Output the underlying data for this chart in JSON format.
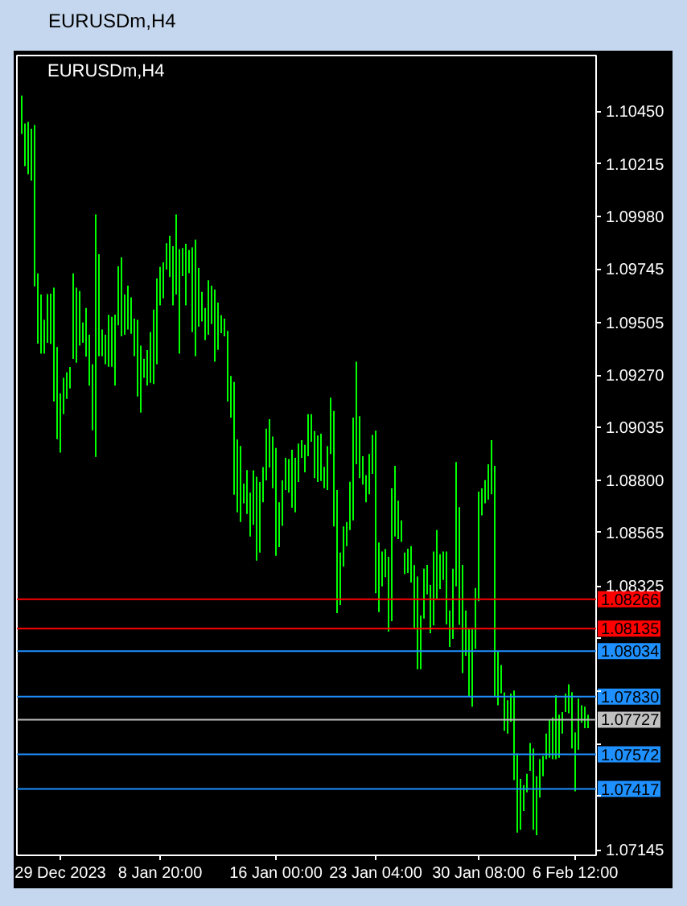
{
  "chart_data": {
    "type": "bar",
    "title": "EURUSDm,H4",
    "annotations": [
      "EURUSDm,H4"
    ],
    "categories": [
      null,
      null,
      null,
      null,
      null,
      null,
      null,
      null,
      null,
      null,
      null,
      null,
      "29 Dec 2023",
      null,
      null,
      null,
      null,
      null,
      null,
      null,
      null,
      null,
      null,
      null,
      null,
      null,
      null,
      null,
      null,
      null,
      null,
      null,
      null,
      null,
      null,
      null,
      null,
      null,
      null,
      null,
      null,
      null,
      null,
      "8 Jan 20:00",
      null,
      null,
      null,
      null,
      null,
      null,
      null,
      null,
      null,
      null,
      null,
      null,
      null,
      null,
      null,
      null,
      null,
      null,
      null,
      null,
      null,
      null,
      null,
      null,
      null,
      null,
      null,
      null,
      null,
      null,
      null,
      null,
      null,
      null,
      null,
      "16 Jan 00:00",
      null,
      null,
      null,
      null,
      null,
      null,
      null,
      null,
      null,
      null,
      null,
      null,
      null,
      null,
      null,
      null,
      null,
      null,
      null,
      null,
      null,
      null,
      null,
      null,
      null,
      null,
      null,
      null,
      null,
      null,
      "23 Jan 04:00",
      null,
      null,
      null,
      null,
      null,
      null,
      null,
      null,
      null,
      null,
      null,
      null,
      null,
      null,
      null,
      null,
      null,
      null,
      null,
      null,
      null,
      null,
      null,
      null,
      null,
      null,
      null,
      null,
      null,
      null,
      null,
      "30 Jan 08:00",
      null,
      null,
      null,
      null,
      null,
      null,
      null,
      null,
      null,
      null,
      null,
      null,
      null,
      null,
      null,
      null,
      null,
      null,
      null,
      null,
      null,
      null,
      null,
      null,
      null,
      null,
      null,
      null,
      null,
      "6 Feb 12:00",
      null,
      null,
      null,
      null
    ],
    "base": [
      1.10349,
      1.10205,
      1.10169,
      1.1014,
      1.09666,
      1.09411,
      1.09366,
      1.09366,
      1.09414,
      1.09409,
      1.09151,
      1.08983,
      1.08923,
      1.09095,
      1.09163,
      1.0921,
      1.09342,
      1.09325,
      1.09402,
      1.09414,
      1.09352,
      1.09222,
      1.09023,
      1.08904,
      1.09354,
      1.09354,
      1.09318,
      1.09307,
      1.09307,
      1.09222,
      1.09493,
      1.09443,
      1.0945,
      1.09474,
      1.09455,
      1.09354,
      1.09174,
      1.09102,
      1.09258,
      1.09222,
      1.09235,
      1.0923,
      1.09318,
      1.09582,
      1.09613,
      1.09742,
      1.09709,
      1.09582,
      1.0963,
      1.09366,
      1.09713,
      1.09582,
      1.09726,
      1.09462,
      1.09354,
      1.09486,
      1.0951,
      1.09426,
      1.0945,
      1.09498,
      1.0933,
      1.09383,
      1.09457,
      1.09443,
      1.09151,
      1.09079,
      1.08734,
      1.08655,
      1.08612,
      1.08696,
      1.08648,
      1.08547,
      1.08599,
      1.08439,
      1.08475,
      1.087,
      1.08798,
      1.08856,
      1.08763,
      1.08461,
      1.08499,
      1.08595,
      1.08755,
      1.08743,
      1.08676,
      1.08655,
      1.08791,
      1.08899,
      1.08834,
      1.08906,
      1.08971,
      1.08808,
      1.08791,
      1.08796,
      1.08763,
      1.08755,
      1.08916,
      1.08592,
      1.08204,
      1.0824,
      1.08412,
      1.08504,
      1.08576,
      1.08619,
      1.0887,
      1.08808,
      1.08779,
      1.087,
      1.08736,
      1.08827,
      1.08293,
      1.08209,
      1.08324,
      1.08365,
      1.08121,
      1.08168,
      1.08547,
      1.08535,
      1.08523,
      1.08379,
      1.08384,
      1.08341,
      1.08132,
      1.07953,
      1.07953,
      1.0818,
      1.08288,
      1.08114,
      1.08149,
      1.08269,
      1.08312,
      1.08353,
      1.08154,
      1.08053,
      1.08089,
      1.08324,
      1.08152,
      1.07936,
      1.08013,
      1.07833,
      1.07785,
      1.08044,
      1.08257,
      1.08642,
      1.08696,
      1.08712,
      1.08736,
      1.07833,
      1.07792,
      1.07845,
      1.07677,
      1.07665,
      1.07718,
      1.07457,
      1.07222,
      1.07234,
      1.07318,
      1.07402,
      1.07498,
      1.07234,
      1.0721,
      1.07378,
      1.07474,
      1.0755,
      1.07557,
      1.0755,
      1.0755,
      1.07557,
      1.07665,
      1.07761,
      1.07756,
      1.07598,
      1.07406,
      1.07593,
      1.07713,
      1.07689,
      1.07689
    ],
    "values": [
      0.00172,
      0.00191,
      0.00234,
      0.00232,
      0.00723,
      0.00314,
      0.00264,
      0.00151,
      0.00218,
      0.00225,
      0.0051,
      0.00412,
      0.00264,
      0.00163,
      0.00119,
      0.00096,
      0.00383,
      0.00336,
      0.00244,
      0.00091,
      0.00218,
      0.00228,
      0.00295,
      0.01085,
      0.00456,
      0.0012,
      0.00132,
      0.00232,
      0.00223,
      0.00318,
      0.00263,
      0.00354,
      0.0018,
      0.00196,
      0.00163,
      0.00168,
      0.00343,
      0.003,
      0.00084,
      0.0016,
      0.00227,
      0.00333,
      0.00384,
      0.00172,
      0.00161,
      0.00118,
      0.00184,
      0.00264,
      0.00359,
      0.00467,
      0.00125,
      0.00275,
      0.00103,
      0.00379,
      0.00522,
      0.00263,
      0.00132,
      0.00144,
      0.00244,
      0.00172,
      0.00323,
      0.00211,
      0.00081,
      0.00079,
      0.00316,
      0.00187,
      0.00505,
      0.00326,
      0.0034,
      0.00088,
      0.00196,
      0.00196,
      0.00244,
      0.00376,
      0.00316,
      0.00158,
      0.00232,
      0.00216,
      0.00232,
      0.00482,
      0.00201,
      0.00203,
      0.00144,
      0.00151,
      0.00259,
      0.00244,
      0.00172,
      0.00079,
      0.00124,
      0.00189,
      0.00124,
      0.00211,
      0.00208,
      0.00211,
      0.00096,
      0.00196,
      0.00252,
      0.00517,
      0.00551,
      0.00235,
      0.0018,
      0.00108,
      0.00216,
      0.0046,
      0.0046,
      0.00278,
      0.00127,
      0.00122,
      0.0018,
      0.00175,
      0.00728,
      0.00311,
      0.00156,
      0.00126,
      0.00335,
      0.00594,
      0.00316,
      0.00172,
      0.00096,
      0.00096,
      0.00108,
      0.00163,
      0.00287,
      0.00415,
      0.0024,
      0.00223,
      0.00132,
      0.00216,
      0.00331,
      0.00307,
      0.00156,
      0.00127,
      0.00326,
      0.00163,
      0.00314,
      0.00556,
      0.00527,
      0.00484,
      0.00203,
      0.00299,
      0.00347,
      0.00273,
      0.00491,
      0.0012,
      0.00103,
      0.00158,
      0.00242,
      0.0103,
      0.00239,
      0.00127,
      0.00172,
      0.00149,
      0.00126,
      0.004,
      0.00354,
      0.00228,
      0.00115,
      0.00083,
      0.00124,
      0.00364,
      0.00264,
      0.00172,
      0.00091,
      0.00115,
      0.00168,
      0.00187,
      0.00287,
      0.00192,
      0.00096,
      0.00083,
      0.00129,
      0.00252,
      0.00264,
      0.00228,
      0.00079,
      0.00096,
      0.0006
    ],
    "color": "#00ff00",
    "ylim": [
      1.0712,
      1.107
    ],
    "yticks": [
      {
        "value": 1.1045,
        "label": "1.10450"
      },
      {
        "value": 1.10215,
        "label": "1.10215"
      },
      {
        "value": 1.0998,
        "label": "1.09980"
      },
      {
        "value": 1.09745,
        "label": "1.09745"
      },
      {
        "value": 1.09505,
        "label": "1.09505"
      },
      {
        "value": 1.0927,
        "label": "1.09270"
      },
      {
        "value": 1.09035,
        "label": "1.09035"
      },
      {
        "value": 1.088,
        "label": "1.08800"
      },
      {
        "value": 1.08565,
        "label": "1.08565"
      },
      {
        "value": 1.08325,
        "label": "1.08325"
      },
      {
        "value": 1.0809,
        "label": null
      },
      {
        "value": 1.07855,
        "label": null
      },
      {
        "value": 1.0762,
        "label": null
      },
      {
        "value": 1.07385,
        "label": null
      },
      {
        "value": 1.07145,
        "label": "1.07145"
      }
    ],
    "ref_lines": [
      {
        "axis": "y",
        "value": 1.08266,
        "label": "1.08266",
        "color": "#ff0000"
      },
      {
        "axis": "y",
        "value": 1.08135,
        "label": "1.08135",
        "color": "#ff0000"
      },
      {
        "axis": "y",
        "value": 1.08034,
        "label": "1.08034",
        "color": "#1e90ff"
      },
      {
        "axis": "y",
        "value": 1.0783,
        "label": "1.07830",
        "color": "#1e90ff"
      },
      {
        "axis": "y",
        "value": 1.07727,
        "label": "1.07727",
        "color": "#c0c0c0"
      },
      {
        "axis": "y",
        "value": 1.07572,
        "label": "1.07572",
        "color": "#1e90ff"
      },
      {
        "axis": "y",
        "value": 1.07417,
        "label": "1.07417",
        "color": "#1e90ff"
      }
    ]
  }
}
